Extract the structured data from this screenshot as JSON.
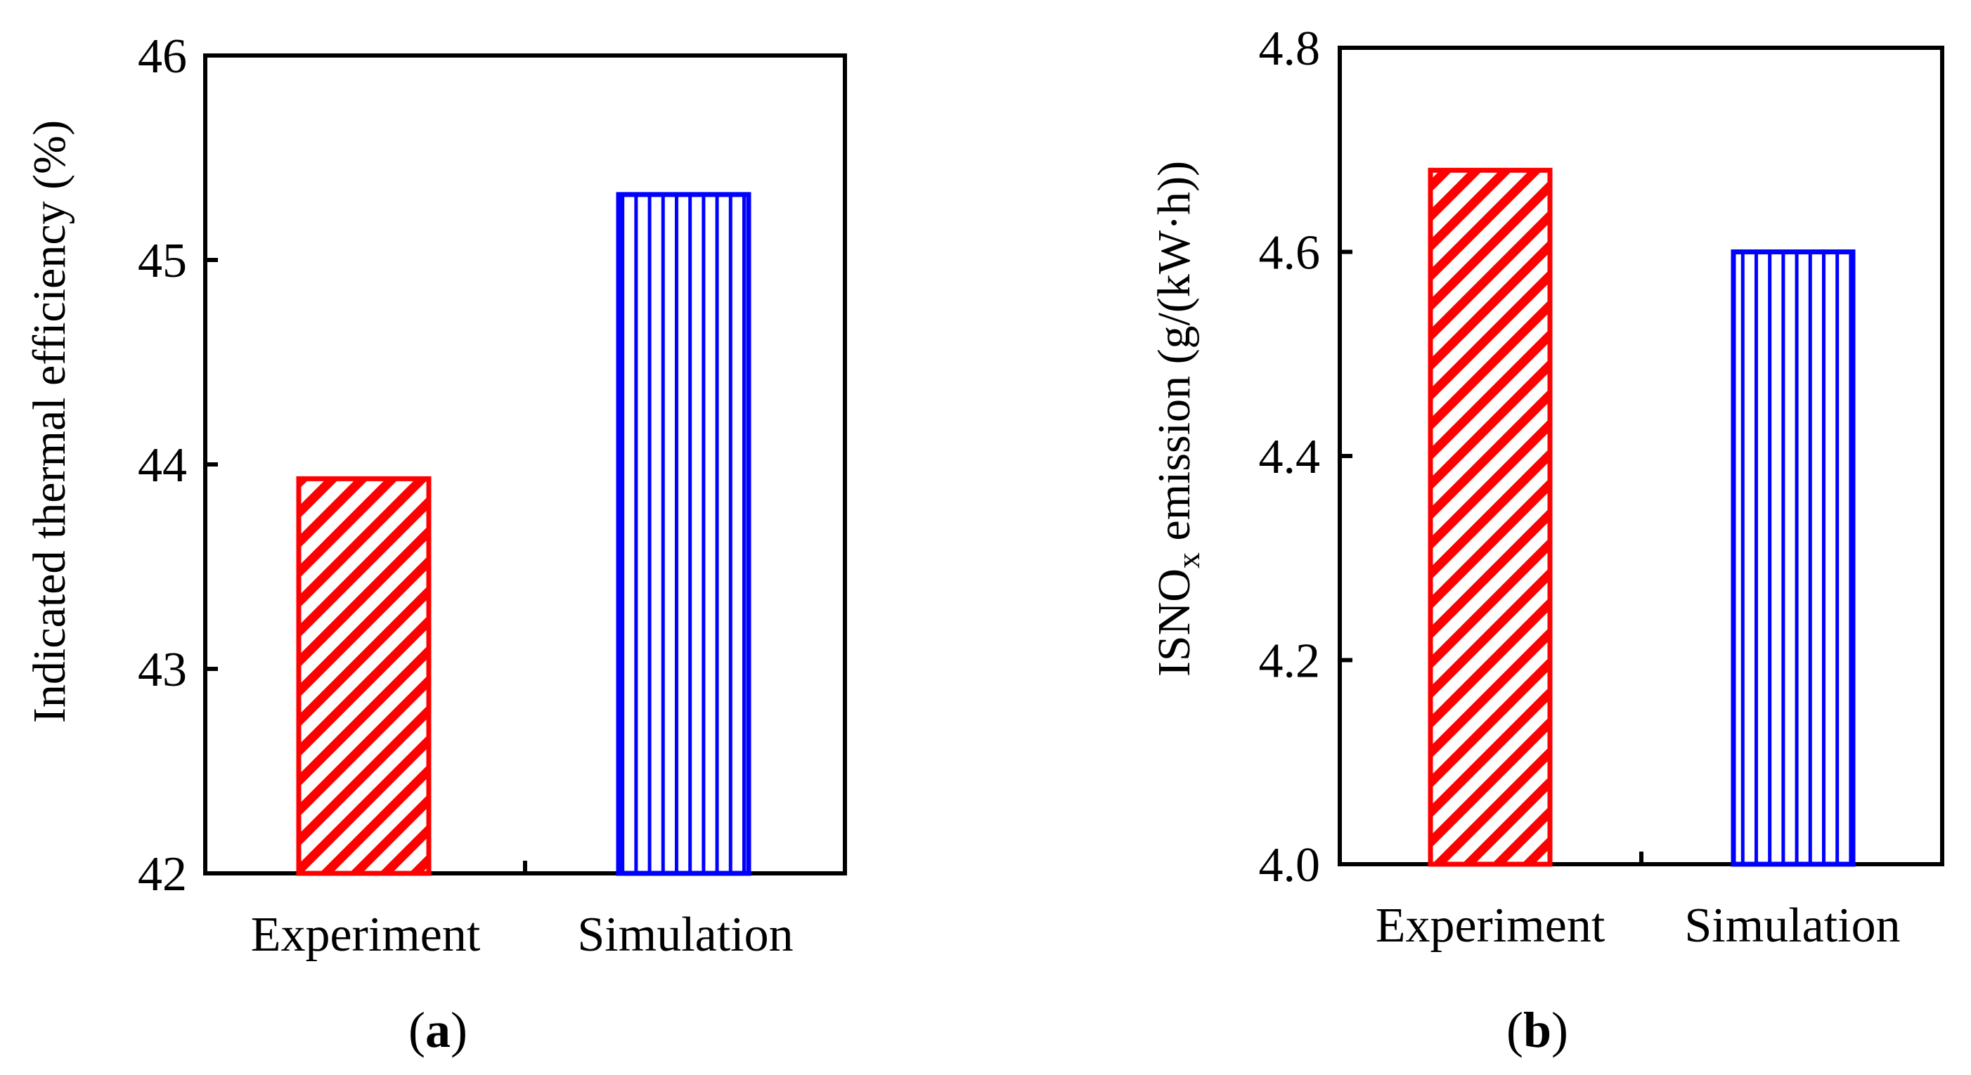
{
  "chart_data": [
    {
      "id": "a",
      "type": "bar",
      "panel_label": "a",
      "categories": [
        "Experiment",
        "Simulation"
      ],
      "values": [
        43.93,
        45.32
      ],
      "ylabel": "Indicated thermal efficiency (%)",
      "ylim": [
        42,
        46
      ],
      "yticks": [
        42,
        43,
        44,
        45,
        46
      ],
      "ytick_labels": [
        "42",
        "43",
        "44",
        "45",
        "46"
      ],
      "grid": false,
      "colors": [
        "#ff0000",
        "#0000ff"
      ],
      "patterns": [
        "diagonal",
        "vertical"
      ]
    },
    {
      "id": "b",
      "type": "bar",
      "panel_label": "b",
      "categories": [
        "Experiment",
        "Simulation"
      ],
      "values": [
        4.68,
        4.6
      ],
      "ylabel": {
        "pre": "ISNO",
        "sub": "x",
        "post": " emission (g/(kW·h))"
      },
      "ylim": [
        4.0,
        4.8
      ],
      "yticks": [
        4.0,
        4.2,
        4.4,
        4.6,
        4.8
      ],
      "ytick_labels": [
        "4.0",
        "4.2",
        "4.4",
        "4.6",
        "4.8"
      ],
      "grid": false,
      "colors": [
        "#ff0000",
        "#0000ff"
      ],
      "patterns": [
        "diagonal",
        "vertical"
      ]
    }
  ]
}
